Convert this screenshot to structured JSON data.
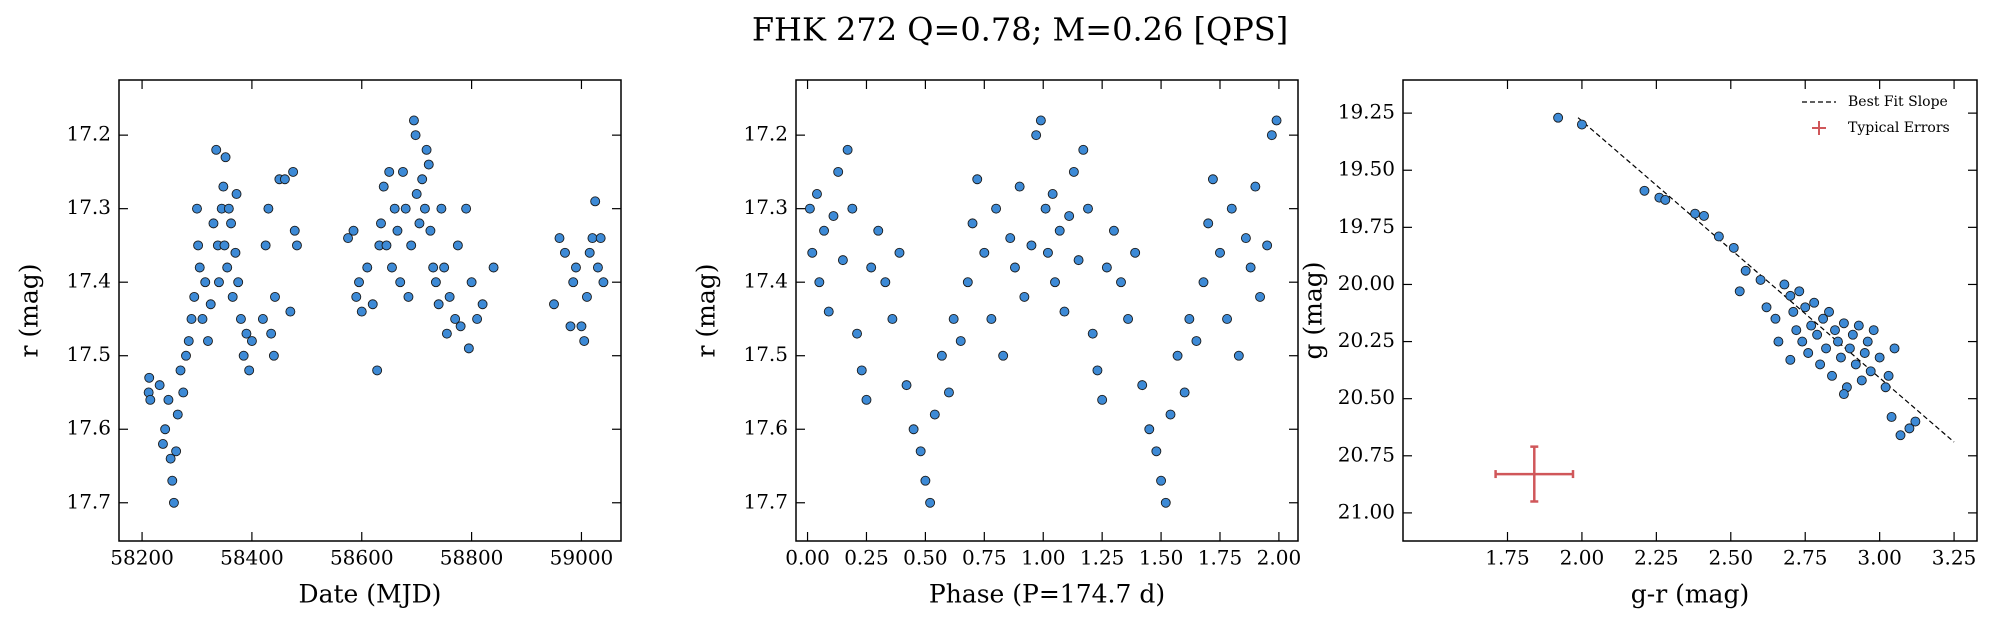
{
  "title": "FHK 272  Q=0.78; M=0.26 [QPS]",
  "chart_data": [
    {
      "type": "scatter",
      "xlabel": "Date (MJD)",
      "ylabel": "r (mag)",
      "color": "#3d8ad6",
      "xlim": [
        58158,
        59072
      ],
      "ylim": [
        17.752,
        17.125
      ],
      "xticks": [
        58200,
        58400,
        58600,
        58800,
        59000
      ],
      "yticks": [
        17.2,
        17.3,
        17.4,
        17.5,
        17.6,
        17.7
      ],
      "x": [
        58212,
        58213,
        58215,
        58232,
        58238,
        58242,
        58248,
        58252,
        58255,
        58258,
        58262,
        58265,
        58270,
        58275,
        58280,
        58285,
        58290,
        58295,
        58300,
        58302,
        58305,
        58310,
        58315,
        58320,
        58325,
        58330,
        58335,
        58338,
        58340,
        58345,
        58348,
        58350,
        58352,
        58355,
        58358,
        58362,
        58365,
        58370,
        58372,
        58375,
        58380,
        58385,
        58390,
        58395,
        58400,
        58420,
        58425,
        58430,
        58435,
        58440,
        58442,
        58450,
        58460,
        58470,
        58475,
        58478,
        58482,
        58575,
        58585,
        58590,
        58595,
        58600,
        58610,
        58620,
        58628,
        58632,
        58635,
        58640,
        58645,
        58650,
        58655,
        58660,
        58665,
        58670,
        58675,
        58680,
        58685,
        58690,
        58695,
        58698,
        58700,
        58705,
        58710,
        58715,
        58718,
        58722,
        58725,
        58730,
        58735,
        58740,
        58745,
        58750,
        58755,
        58760,
        58770,
        58775,
        58780,
        58790,
        58795,
        58800,
        58810,
        58820,
        58840,
        58950,
        58960,
        58970,
        58980,
        58985,
        58990,
        59000,
        59005,
        59010,
        59015,
        59020,
        59025,
        59030,
        59035,
        59040
      ],
      "y": [
        17.55,
        17.53,
        17.56,
        17.54,
        17.62,
        17.6,
        17.56,
        17.64,
        17.67,
        17.7,
        17.63,
        17.58,
        17.52,
        17.55,
        17.5,
        17.48,
        17.45,
        17.42,
        17.3,
        17.35,
        17.38,
        17.45,
        17.4,
        17.48,
        17.43,
        17.32,
        17.22,
        17.35,
        17.4,
        17.3,
        17.27,
        17.35,
        17.23,
        17.38,
        17.3,
        17.32,
        17.42,
        17.36,
        17.28,
        17.4,
        17.45,
        17.5,
        17.47,
        17.52,
        17.48,
        17.45,
        17.35,
        17.3,
        17.47,
        17.5,
        17.42,
        17.26,
        17.26,
        17.44,
        17.25,
        17.33,
        17.35,
        17.34,
        17.33,
        17.42,
        17.4,
        17.44,
        17.38,
        17.43,
        17.52,
        17.35,
        17.32,
        17.27,
        17.35,
        17.25,
        17.38,
        17.3,
        17.33,
        17.4,
        17.25,
        17.3,
        17.42,
        17.35,
        17.18,
        17.2,
        17.28,
        17.32,
        17.26,
        17.3,
        17.22,
        17.24,
        17.33,
        17.38,
        17.4,
        17.43,
        17.3,
        17.38,
        17.47,
        17.42,
        17.45,
        17.35,
        17.46,
        17.3,
        17.49,
        17.4,
        17.45,
        17.43,
        17.38,
        17.43,
        17.34,
        17.36,
        17.46,
        17.4,
        17.38,
        17.46,
        17.48,
        17.42,
        17.36,
        17.34,
        17.29,
        17.38,
        17.34,
        17.4
      ]
    },
    {
      "type": "scatter",
      "xlabel": "Phase (P=174.7 d)",
      "ylabel": "r (mag)",
      "color": "#3d8ad6",
      "xlim": [
        -0.049,
        2.081
      ],
      "ylim": [
        17.752,
        17.125
      ],
      "xticks": [
        {
          "value": 0,
          "label": "0.00"
        },
        {
          "value": 0.25,
          "label": "0.25"
        },
        {
          "value": 0.5,
          "label": "0.50"
        },
        {
          "value": 0.75,
          "label": "0.75"
        },
        {
          "value": 1,
          "label": "1.00"
        },
        {
          "value": 1.25,
          "label": "1.25"
        },
        {
          "value": 1.5,
          "label": "1.50"
        },
        {
          "value": 1.75,
          "label": "1.75"
        },
        {
          "value": 2,
          "label": "2.00"
        }
      ],
      "yticks": [
        17.2,
        17.3,
        17.4,
        17.5,
        17.6,
        17.7
      ],
      "x": [
        0.01,
        0.02,
        0.04,
        0.05,
        0.07,
        0.09,
        0.11,
        0.13,
        0.15,
        0.17,
        0.19,
        0.21,
        0.23,
        0.25,
        0.27,
        0.3,
        0.33,
        0.36,
        0.39,
        0.42,
        0.45,
        0.48,
        0.5,
        0.52,
        0.54,
        0.57,
        0.6,
        0.62,
        0.65,
        0.68,
        0.7,
        0.72,
        0.75,
        0.78,
        0.8,
        0.83,
        0.86,
        0.88,
        0.9,
        0.92,
        0.95,
        0.97,
        0.99,
        1.01,
        1.02,
        1.04,
        1.05,
        1.07,
        1.09,
        1.11,
        1.13,
        1.15,
        1.17,
        1.19,
        1.21,
        1.23,
        1.25,
        1.27,
        1.3,
        1.33,
        1.36,
        1.39,
        1.42,
        1.45,
        1.48,
        1.5,
        1.52,
        1.54,
        1.57,
        1.6,
        1.62,
        1.65,
        1.68,
        1.7,
        1.72,
        1.75,
        1.78,
        1.8,
        1.83,
        1.86,
        1.88,
        1.9,
        1.92,
        1.95,
        1.97,
        1.99
      ],
      "y": [
        17.3,
        17.36,
        17.28,
        17.4,
        17.33,
        17.44,
        17.31,
        17.25,
        17.37,
        17.22,
        17.3,
        17.47,
        17.52,
        17.56,
        17.38,
        17.33,
        17.4,
        17.45,
        17.36,
        17.54,
        17.6,
        17.63,
        17.67,
        17.7,
        17.58,
        17.5,
        17.55,
        17.45,
        17.48,
        17.4,
        17.32,
        17.26,
        17.36,
        17.45,
        17.3,
        17.5,
        17.34,
        17.38,
        17.27,
        17.42,
        17.35,
        17.2,
        17.18,
        17.3,
        17.36,
        17.28,
        17.4,
        17.33,
        17.44,
        17.31,
        17.25,
        17.37,
        17.22,
        17.3,
        17.47,
        17.52,
        17.56,
        17.38,
        17.33,
        17.4,
        17.45,
        17.36,
        17.54,
        17.6,
        17.63,
        17.67,
        17.7,
        17.58,
        17.5,
        17.55,
        17.45,
        17.48,
        17.4,
        17.32,
        17.26,
        17.36,
        17.45,
        17.3,
        17.5,
        17.34,
        17.38,
        17.27,
        17.42,
        17.35,
        17.2,
        17.18
      ]
    },
    {
      "type": "scatter",
      "xlabel": "g-r (mag)",
      "ylabel": "g (mag)",
      "color": "#3d8ad6",
      "xlim": [
        1.399,
        3.327
      ],
      "ylim": [
        21.123,
        19.105
      ],
      "legend": "upper right",
      "xticks": [
        1.75,
        {
          "value": 2,
          "label": "2.00"
        },
        2.25,
        {
          "value": 2.5,
          "label": "2.50"
        },
        2.75,
        {
          "value": 3,
          "label": "3.00"
        },
        3.25
      ],
      "yticks": [
        19.25,
        {
          "value": 19.5,
          "label": "19.50"
        },
        19.75,
        {
          "value": 20,
          "label": "20.00"
        },
        20.25,
        {
          "value": 20.5,
          "label": "20.50"
        },
        20.75,
        {
          "value": 21,
          "label": "21.00"
        }
      ],
      "x": [
        1.92,
        2.0,
        2.21,
        2.26,
        2.28,
        2.38,
        2.41,
        2.46,
        2.51,
        2.55,
        2.53,
        2.6,
        2.62,
        2.65,
        2.68,
        2.7,
        2.71,
        2.72,
        2.73,
        2.74,
        2.75,
        2.76,
        2.77,
        2.78,
        2.79,
        2.8,
        2.81,
        2.82,
        2.83,
        2.84,
        2.85,
        2.86,
        2.87,
        2.88,
        2.89,
        2.9,
        2.91,
        2.92,
        2.93,
        2.94,
        2.95,
        2.96,
        2.97,
        2.98,
        3.0,
        3.02,
        3.03,
        3.04,
        3.05,
        3.07,
        3.1,
        3.12,
        2.7,
        2.66,
        2.88
      ],
      "y": [
        19.27,
        19.3,
        19.59,
        19.62,
        19.63,
        19.69,
        19.7,
        19.79,
        19.84,
        19.94,
        20.03,
        19.98,
        20.1,
        20.15,
        20.0,
        20.05,
        20.12,
        20.2,
        20.03,
        20.25,
        20.1,
        20.3,
        20.18,
        20.08,
        20.22,
        20.35,
        20.15,
        20.28,
        20.12,
        20.4,
        20.2,
        20.25,
        20.32,
        20.17,
        20.45,
        20.28,
        20.22,
        20.35,
        20.18,
        20.42,
        20.3,
        20.25,
        20.38,
        20.2,
        20.32,
        20.45,
        20.4,
        20.58,
        20.28,
        20.66,
        20.63,
        20.6,
        20.33,
        20.25,
        20.48
      ],
      "fit_line": {
        "name": "Best Fit Slope",
        "color": "#000000",
        "x": [
          1.987,
          3.25
        ],
        "y": [
          19.27,
          20.69
        ]
      },
      "typical_error": {
        "name": "Typical Errors",
        "color": "#d0575a",
        "x": 1.84,
        "y": 20.83,
        "xerr": 0.13,
        "yerr": 0.12
      }
    }
  ]
}
